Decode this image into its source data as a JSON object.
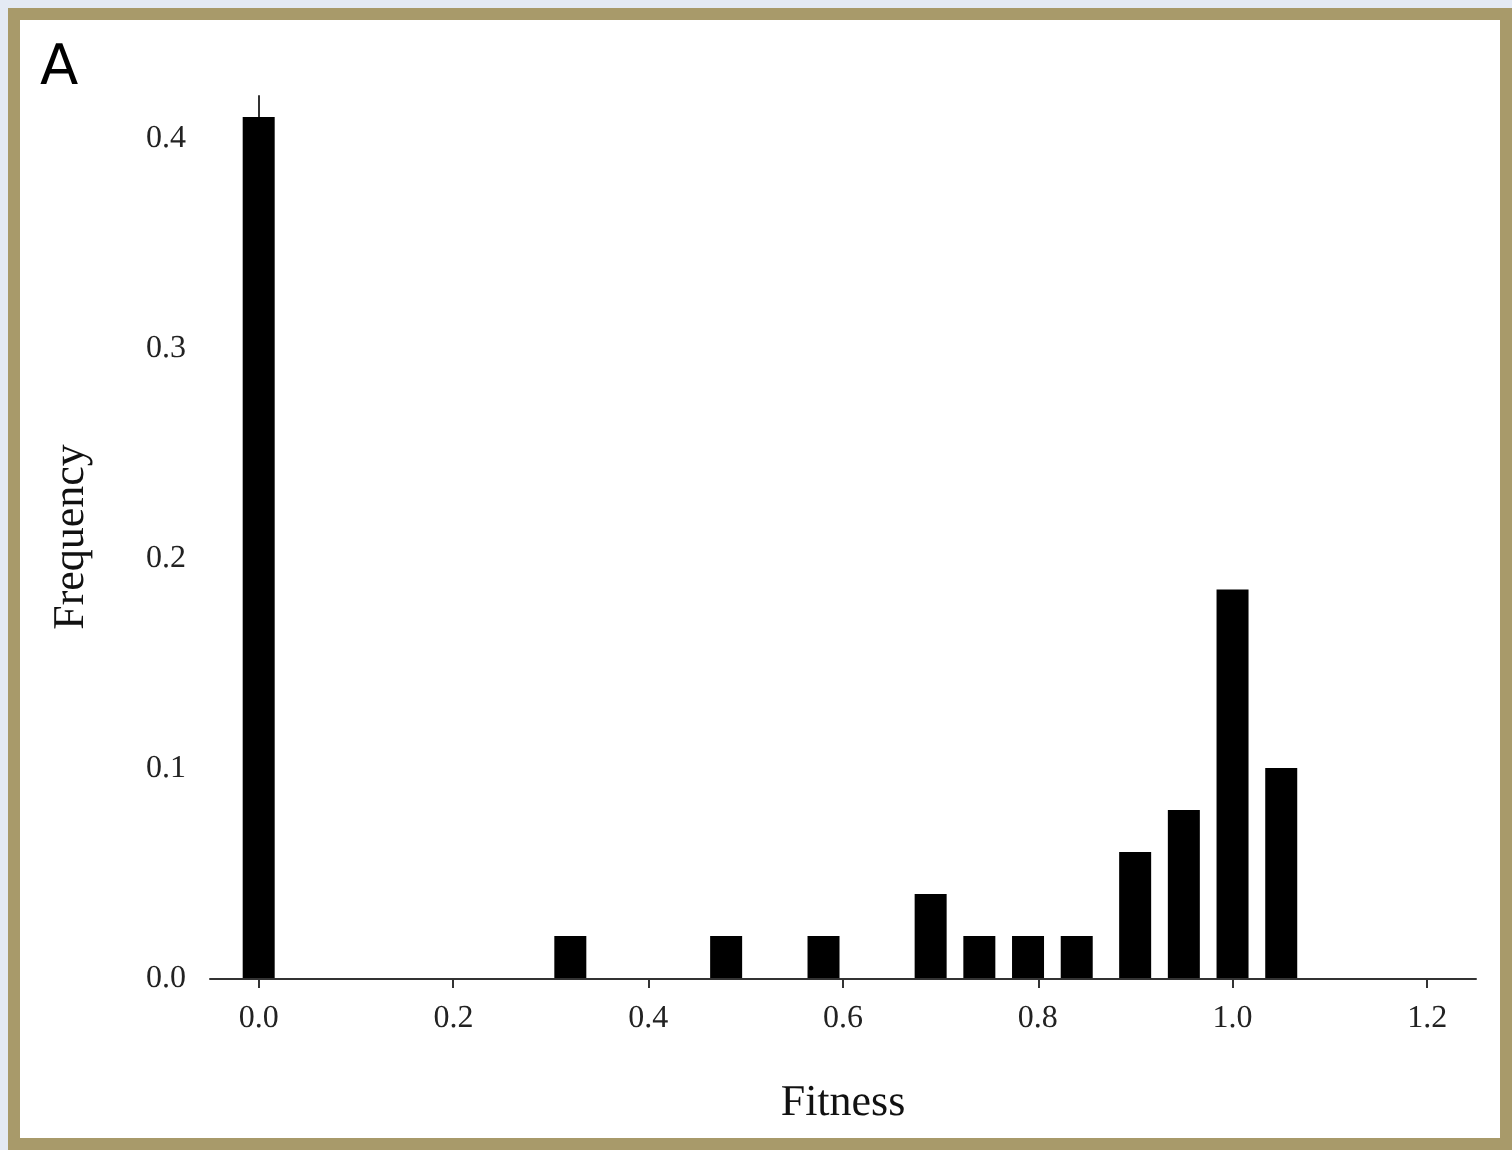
{
  "chart_data": {
    "type": "bar",
    "xlabel": "Fitness",
    "ylabel": "Frequency",
    "annotations": [
      "A"
    ],
    "x": [
      0,
      0.32,
      0.48,
      0.58,
      0.69,
      0.74,
      0.79,
      0.84,
      0.9,
      0.95,
      1.0,
      1.05
    ],
    "values": [
      0.41,
      0.02,
      0.02,
      0.02,
      0.04,
      0.02,
      0.02,
      0.02,
      0.06,
      0.08,
      0.185,
      0.1
    ],
    "color": "#000000",
    "xlim": [
      -0.05,
      1.25
    ],
    "xticks": [
      {
        "value": 0,
        "label": "0.0"
      },
      {
        "value": 0.2,
        "label": "0.2"
      },
      {
        "value": 0.4,
        "label": "0.4"
      },
      {
        "value": 0.6,
        "label": "0.6"
      },
      {
        "value": 0.8,
        "label": "0.8"
      },
      {
        "value": 1.0,
        "label": "1.0"
      },
      {
        "value": 1.2,
        "label": "1.2"
      }
    ],
    "ylim": [
      0,
      0.42
    ],
    "yticks": [
      {
        "value": 0,
        "label": "0.0"
      },
      {
        "value": 0.1,
        "label": "0.1"
      },
      {
        "value": 0.2,
        "label": "0.2"
      },
      {
        "value": 0.3,
        "label": "0.3"
      },
      {
        "value": 0.4,
        "label": "0.4"
      }
    ],
    "grid": false
  }
}
